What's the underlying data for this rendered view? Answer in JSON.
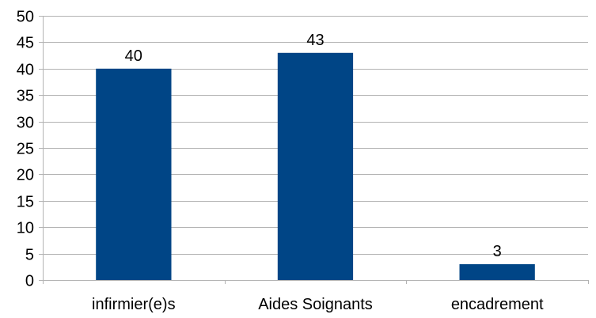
{
  "chart_data": {
    "type": "bar",
    "categories": [
      "infirmier(e)s",
      "Aides Soignants",
      "encadrement"
    ],
    "values": [
      40,
      43,
      3
    ],
    "data_labels": [
      "40",
      "43",
      "3"
    ],
    "title": "",
    "xlabel": "",
    "ylabel": "",
    "ylim": [
      0,
      50
    ],
    "yticks": [
      0,
      5,
      10,
      15,
      20,
      25,
      30,
      35,
      40,
      45,
      50
    ],
    "ytick_labels": [
      "0",
      "5",
      "10",
      "15",
      "20",
      "25",
      "30",
      "35",
      "40",
      "45",
      "50"
    ],
    "grid": true,
    "legend": "none",
    "bar_color": "#004586",
    "grid_color": "#b3b3b3"
  }
}
